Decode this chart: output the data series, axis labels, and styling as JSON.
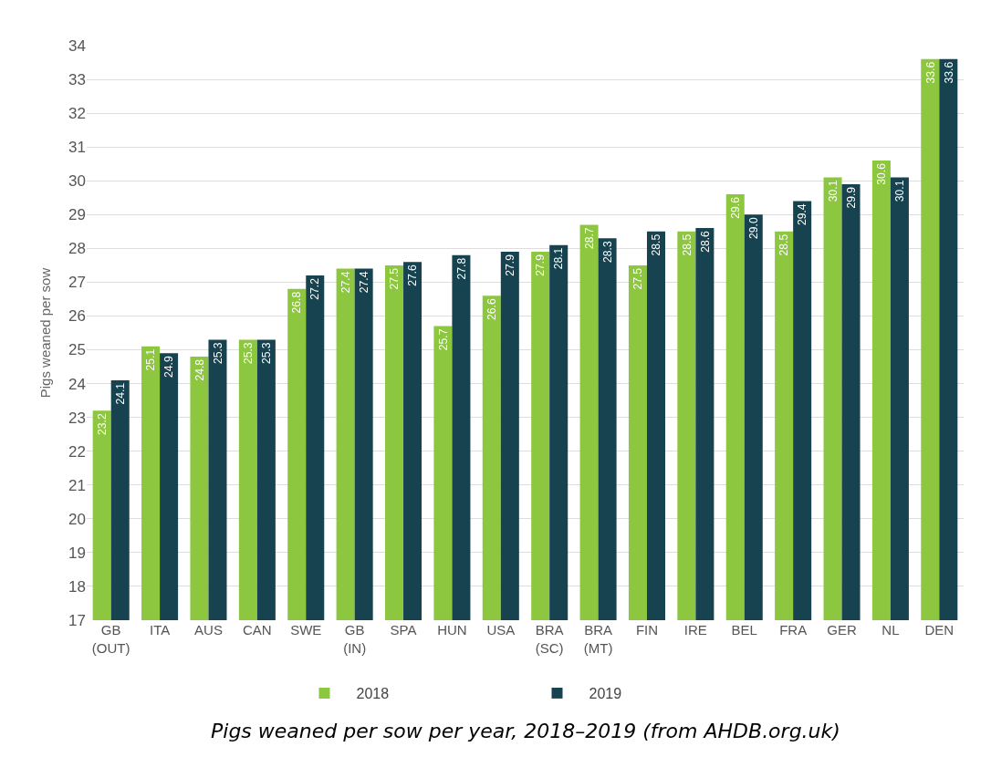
{
  "chart_data": {
    "type": "bar",
    "ylabel": "Pigs weaned per sow",
    "categories": [
      "GB\n(OUT)",
      "ITA",
      "AUS",
      "CAN",
      "SWE",
      "GB\n(IN)",
      "SPA",
      "HUN",
      "USA",
      "BRA\n(SC)",
      "BRA\n(MT)",
      "FIN",
      "IRE",
      "BEL",
      "FRA",
      "GER",
      "NL",
      "DEN"
    ],
    "series": [
      {
        "name": "2018",
        "color": "#8dc63f",
        "values": [
          23.2,
          25.1,
          24.8,
          25.3,
          26.8,
          27.4,
          27.5,
          25.7,
          26.6,
          27.9,
          28.7,
          27.5,
          28.5,
          29.6,
          28.5,
          30.1,
          30.6,
          33.6
        ],
        "value_labels": [
          "23.2",
          "25.1",
          "24.8",
          "25.3",
          "26.8",
          "27.4",
          "27.5",
          "25.7",
          "26.6",
          "27.9",
          "28.7",
          "27.5",
          "28.5",
          "29.6",
          "28.5",
          "30.1",
          "30.6",
          "33.6"
        ]
      },
      {
        "name": "2019",
        "color": "#174350",
        "values": [
          24.1,
          24.9,
          25.3,
          25.3,
          27.2,
          27.4,
          27.6,
          27.8,
          27.9,
          28.1,
          28.3,
          28.5,
          28.6,
          29.0,
          29.4,
          29.9,
          30.1,
          33.6
        ],
        "value_labels": [
          "24.1",
          "24.9",
          "25.3",
          "25.3",
          "27.2",
          "27.4",
          "27.6",
          "27.8",
          "27.9",
          "28.1",
          "28.3",
          "28.5",
          "28.6",
          "29.0",
          "29.4",
          "29.9",
          "30.1",
          "33.6"
        ]
      }
    ],
    "ylim": [
      17,
      34
    ],
    "yticks": [
      17,
      18,
      19,
      20,
      21,
      22,
      23,
      24,
      25,
      26,
      27,
      28,
      29,
      30,
      31,
      32,
      33,
      34
    ],
    "grid": "y",
    "legend": "bottom",
    "annotations": [
      "Pigs weaned per sow per year, 2018–2019 (from AHDB.org.uk)"
    ]
  }
}
